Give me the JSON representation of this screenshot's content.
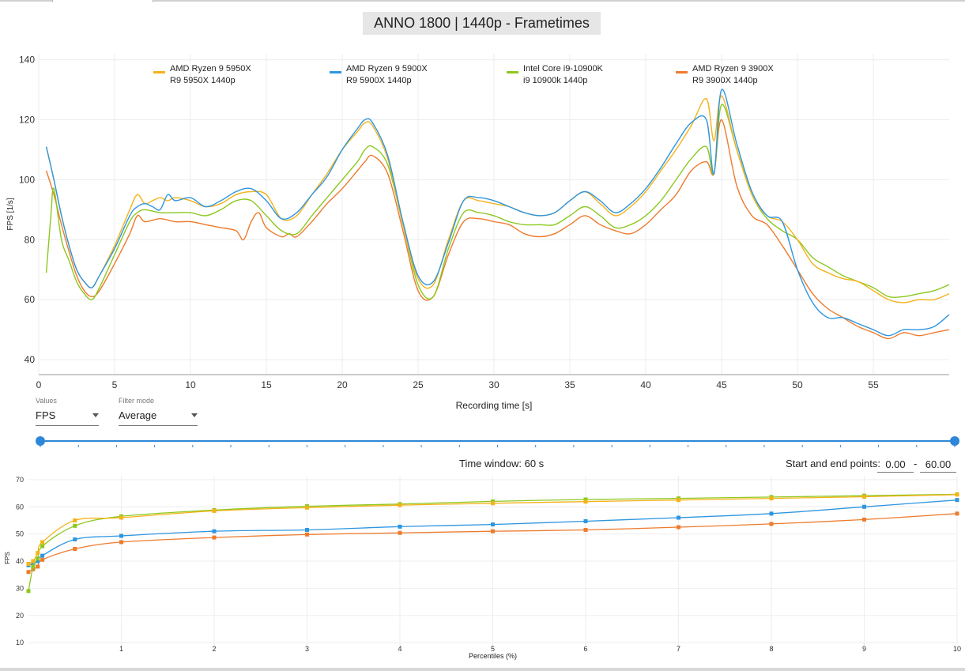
{
  "title": "ANNO 1800 | 1440p - Frametimes",
  "controls": {
    "values_label": "Values",
    "values_selected": "FPS",
    "filter_label": "Filter mode",
    "filter_selected": "Average",
    "time_window_text": "Time window:  60 s",
    "start_end_label": "Start and end points:",
    "start_value": "0.00",
    "end_value": "60.00",
    "range_separator": "-"
  },
  "colors": {
    "AMD Ryzen 9 5950X": "#f5b21a",
    "AMD Ryzen 9 5900X": "#2e96e0",
    "Intel Core i9-10900K": "#8cc81e",
    "AMD Ryzen 9 3900X": "#ee7b2d"
  },
  "chart_data": [
    {
      "type": "line",
      "xlabel": "Recording time [s]",
      "ylabel": "FPS [1/s]",
      "xlim": [
        0,
        60
      ],
      "ylim": [
        35,
        142
      ],
      "xticks": [
        0,
        5,
        10,
        15,
        20,
        25,
        30,
        35,
        40,
        45,
        50,
        55
      ],
      "yticks": [
        40,
        60,
        80,
        100,
        120,
        140
      ],
      "grid": true,
      "legend_position": "top",
      "series": [
        {
          "name": "AMD Ryzen 9 5950X",
          "subtitle": "R9 5950X 1440p",
          "x": [
            0.5,
            1,
            1.5,
            2,
            2.5,
            3,
            3.5,
            4,
            5,
            6,
            6.5,
            7,
            7.5,
            8,
            8.5,
            9,
            10,
            11,
            12,
            13,
            14,
            15,
            16,
            17,
            18,
            19,
            20,
            21,
            21.5,
            22,
            23,
            24,
            25,
            26,
            27,
            28,
            29,
            30,
            31,
            32,
            33,
            34,
            35,
            36,
            37,
            38,
            39,
            40,
            41,
            42,
            43,
            44,
            44.5,
            45,
            46,
            47,
            48,
            49,
            50,
            51,
            52,
            53,
            54,
            55,
            56,
            57,
            58,
            59,
            60
          ],
          "y": [
            111,
            100,
            88,
            78,
            70,
            66,
            64,
            68,
            78,
            90,
            95,
            92,
            93,
            94,
            93,
            94,
            93,
            91,
            92,
            95,
            96,
            95,
            87,
            88,
            95,
            102,
            110,
            116,
            119,
            118,
            107,
            85,
            67,
            65,
            80,
            93,
            93,
            92,
            91,
            89,
            88,
            89,
            93,
            96,
            92,
            88,
            91,
            96,
            103,
            110,
            118,
            127,
            113,
            128,
            110,
            95,
            88,
            86,
            80,
            72,
            69,
            67,
            66,
            63,
            60,
            59,
            60,
            60,
            62
          ]
        },
        {
          "name": "AMD Ryzen 9 5900X",
          "subtitle": "R9 5900X 1440p",
          "x": [
            0.5,
            1,
            1.5,
            2,
            2.5,
            3,
            3.5,
            4,
            5,
            6,
            6.5,
            7,
            7.5,
            8,
            8.5,
            9,
            10,
            11,
            12,
            13,
            14,
            15,
            16,
            17,
            18,
            19,
            20,
            21,
            21.5,
            22,
            23,
            24,
            25,
            26,
            27,
            28,
            29,
            30,
            31,
            32,
            33,
            34,
            35,
            36,
            37,
            38,
            39,
            40,
            41,
            42,
            43,
            44,
            44.5,
            45,
            46,
            47,
            48,
            49,
            50,
            51,
            52,
            53,
            54,
            55,
            56,
            57,
            58,
            59,
            60
          ],
          "y": [
            111,
            100,
            88,
            78,
            70,
            66,
            64,
            68,
            77,
            88,
            91,
            92,
            91,
            90,
            95,
            93,
            94,
            91,
            93,
            96,
            97,
            93,
            87,
            89,
            95,
            101,
            110,
            117,
            120,
            119,
            108,
            86,
            68,
            66,
            79,
            93,
            94,
            93,
            91,
            89,
            88,
            89,
            93,
            96,
            93,
            89,
            92,
            97,
            104,
            112,
            119,
            120,
            102,
            130,
            112,
            96,
            88,
            86,
            70,
            59,
            54,
            54,
            52,
            50,
            48,
            50,
            50,
            51,
            55
          ]
        },
        {
          "name": "Intel Core i9-10900K",
          "subtitle": "i9 10900k 1440p",
          "x": [
            0.5,
            0.8,
            1,
            1.5,
            2,
            2.5,
            3,
            3.5,
            4,
            5,
            6,
            6.5,
            7,
            8,
            9,
            10,
            11,
            12,
            13,
            14,
            15,
            16,
            17,
            18,
            19,
            20,
            21,
            21.5,
            22,
            23,
            24,
            25,
            26,
            27,
            28,
            29,
            30,
            31,
            32,
            33,
            34,
            35,
            36,
            37,
            38,
            39,
            40,
            41,
            42,
            43,
            44,
            44.5,
            45,
            46,
            47,
            48,
            49,
            50,
            51,
            52,
            53,
            54,
            55,
            56,
            57,
            58,
            59,
            60
          ],
          "y": [
            69,
            88,
            97,
            80,
            73,
            66,
            62,
            60,
            64,
            75,
            86,
            89,
            90,
            89,
            89,
            89,
            88,
            90,
            93,
            93,
            88,
            83,
            82,
            88,
            94,
            100,
            106,
            110,
            111,
            105,
            85,
            65,
            61,
            77,
            89,
            89,
            88,
            86,
            85,
            85,
            85,
            88,
            91,
            88,
            84,
            85,
            88,
            93,
            100,
            107,
            111,
            102,
            125,
            110,
            95,
            87,
            83,
            80,
            74,
            71,
            68,
            66,
            64,
            61,
            61,
            62,
            63,
            65
          ]
        },
        {
          "name": "AMD Ryzen 9 3900X",
          "subtitle": "R9 3900X 1440p",
          "x": [
            0.5,
            1,
            1.5,
            2,
            2.5,
            3,
            3.5,
            4,
            5,
            6,
            6.5,
            7,
            8,
            9,
            10,
            11,
            12,
            13,
            13.5,
            14,
            14.5,
            15,
            16,
            16.5,
            17,
            18,
            19,
            20,
            21,
            21.5,
            22,
            23,
            24,
            25,
            26,
            27,
            28,
            29,
            30,
            31,
            32,
            33,
            34,
            35,
            36,
            37,
            38,
            39,
            40,
            41,
            42,
            43,
            44,
            44.5,
            45,
            46,
            47,
            48,
            49,
            50,
            51,
            52,
            53,
            54,
            55,
            56,
            57,
            58,
            59,
            60
          ],
          "y": [
            103,
            95,
            85,
            76,
            68,
            63,
            61,
            63,
            72,
            82,
            88,
            86,
            87,
            86,
            86,
            85,
            84,
            83,
            80,
            86,
            89,
            84,
            81,
            82,
            81,
            86,
            92,
            97,
            103,
            106,
            108,
            102,
            83,
            63,
            61,
            75,
            86,
            87,
            86,
            85,
            82,
            81,
            82,
            85,
            88,
            85,
            83,
            82,
            85,
            90,
            95,
            103,
            106,
            102,
            120,
            98,
            88,
            85,
            78,
            70,
            62,
            57,
            54,
            51,
            49,
            47,
            49,
            48,
            49,
            50
          ]
        }
      ]
    },
    {
      "type": "line",
      "xlabel": "Percentiles (%)",
      "ylabel": "FPS",
      "xlim": [
        0,
        10
      ],
      "ylim": [
        8,
        72
      ],
      "xticks": [
        1,
        2,
        3,
        4,
        5,
        6,
        7,
        8,
        9,
        10
      ],
      "yticks": [
        10,
        20,
        30,
        40,
        50,
        60,
        70
      ],
      "grid": true,
      "markers": "square",
      "series": [
        {
          "name": "AMD Ryzen 9 5950X",
          "x": [
            0,
            0.05,
            0.1,
            0.15,
            0.5,
            1,
            2,
            3,
            4,
            5,
            6,
            7,
            8,
            9,
            10
          ],
          "y": [
            39,
            40,
            43,
            47,
            55,
            56,
            58.5,
            59.7,
            60.6,
            61.3,
            61.9,
            62.5,
            63.1,
            63.7,
            64.5
          ]
        },
        {
          "name": "AMD Ryzen 9 5900X",
          "x": [
            0,
            0.05,
            0.1,
            0.15,
            0.5,
            1,
            2,
            3,
            4,
            5,
            6,
            7,
            8,
            9,
            10
          ],
          "y": [
            38.5,
            39,
            40,
            42,
            48,
            49.3,
            51,
            51.5,
            52.7,
            53.5,
            54.7,
            56,
            57.5,
            60,
            62.5
          ]
        },
        {
          "name": "Intel Core i9-10900K",
          "x": [
            0,
            0.05,
            0.1,
            0.15,
            0.5,
            1,
            2,
            3,
            4,
            5,
            6,
            7,
            8,
            9,
            10
          ],
          "y": [
            29,
            38,
            41,
            45.5,
            53,
            56.5,
            58.8,
            60.2,
            61,
            62,
            62.7,
            63.1,
            63.6,
            64.1,
            64.6
          ]
        },
        {
          "name": "AMD Ryzen 9 3900X",
          "x": [
            0,
            0.05,
            0.1,
            0.15,
            0.5,
            1,
            2,
            3,
            4,
            5,
            6,
            7,
            8,
            9,
            10
          ],
          "y": [
            36,
            37,
            38,
            40.5,
            44.5,
            47,
            48.7,
            49.8,
            50.4,
            51,
            51.5,
            52.5,
            53.7,
            55.3,
            57.5
          ]
        }
      ]
    }
  ]
}
